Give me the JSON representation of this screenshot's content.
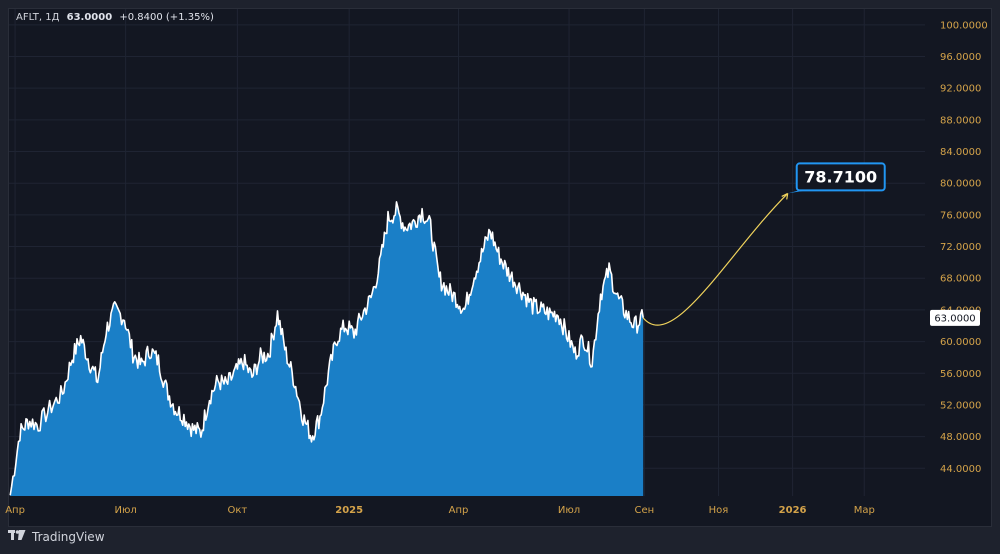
{
  "legend": {
    "symbol": "AFLT, 1Д",
    "value": "63.0000",
    "change": "+0.8400 (+1.35%)"
  },
  "footer": {
    "brand": "TradingView",
    "logo_icon": "tradingview-logo-icon"
  },
  "colors": {
    "background": "#131722",
    "area_fill": "#1a7fc7",
    "line": "#ffffff",
    "axis_text": "#d4a34a",
    "grid": "#1f2433",
    "projection": "#f0d35c",
    "target_border": "#2196f3"
  },
  "chart_data": {
    "type": "area",
    "y_axis": {
      "ticks": [
        "100.0000",
        "96.0000",
        "92.0000",
        "88.0000",
        "84.0000",
        "80.0000",
        "76.0000",
        "72.0000",
        "68.0000",
        "64.0000",
        "60.0000",
        "56.0000",
        "52.0000",
        "48.0000",
        "44.0000"
      ],
      "ylim": [
        40.5,
        102
      ],
      "last_price_label": "63.0000",
      "last_price": 63.0
    },
    "x_axis": {
      "ticks": [
        {
          "label": "Апр",
          "bold": false
        },
        {
          "label": "Июл",
          "bold": false
        },
        {
          "label": "Окт",
          "bold": false
        },
        {
          "label": "2025",
          "bold": true
        },
        {
          "label": "Апр",
          "bold": false
        },
        {
          "label": "Июл",
          "bold": false
        },
        {
          "label": "Сен",
          "bold": false
        },
        {
          "label": "Ноя",
          "bold": false
        },
        {
          "label": "2026",
          "bold": true
        },
        {
          "label": "Мар",
          "bold": false
        }
      ]
    },
    "series": [
      {
        "x": [
          "2024-03-28",
          "2024-04-05",
          "2024-04-12",
          "2024-04-20",
          "2024-05-01",
          "2024-05-10",
          "2024-05-18",
          "2024-05-25",
          "2024-06-01",
          "2024-06-08",
          "2024-06-15",
          "2024-06-22",
          "2024-06-30",
          "2024-07-07",
          "2024-07-14",
          "2024-07-21",
          "2024-07-28",
          "2024-08-04",
          "2024-08-11",
          "2024-08-18",
          "2024-08-25",
          "2024-09-01",
          "2024-09-08",
          "2024-09-15",
          "2024-09-22",
          "2024-09-29",
          "2024-10-06",
          "2024-10-13",
          "2024-10-20",
          "2024-10-27",
          "2024-11-03",
          "2024-11-10",
          "2024-11-17",
          "2024-11-24",
          "2024-12-01",
          "2024-12-08",
          "2024-12-15",
          "2024-12-22",
          "2024-12-29",
          "2025-01-05",
          "2025-01-12",
          "2025-01-19",
          "2025-01-26",
          "2025-02-02",
          "2025-02-09",
          "2025-02-16",
          "2025-02-23",
          "2025-03-02",
          "2025-03-09",
          "2025-03-16",
          "2025-03-23",
          "2025-03-30",
          "2025-04-06",
          "2025-04-13",
          "2025-04-20",
          "2025-04-27",
          "2025-05-04",
          "2025-05-11",
          "2025-05-18",
          "2025-05-25",
          "2025-06-01",
          "2025-06-08",
          "2025-06-15",
          "2025-06-22",
          "2025-06-29",
          "2025-07-06",
          "2025-07-13",
          "2025-07-20",
          "2025-07-27",
          "2025-08-03",
          "2025-08-10",
          "2025-08-17",
          "2025-08-24",
          "2025-08-31"
        ],
        "values": [
          40.6,
          48.5,
          50.0,
          49.5,
          51.8,
          53.5,
          58.0,
          60.5,
          57.5,
          55.0,
          61.5,
          64.0,
          63.0,
          58.5,
          57.0,
          59.0,
          57.5,
          53.8,
          51.5,
          50.5,
          49.0,
          48.5,
          53.0,
          55.0,
          54.5,
          56.0,
          57.5,
          55.5,
          58.0,
          58.5,
          63.5,
          58.5,
          55.0,
          50.5,
          48.0,
          50.5,
          56.0,
          60.5,
          62.0,
          61.0,
          63.5,
          65.5,
          69.5,
          75.5,
          76.5,
          74.5,
          75.0,
          76.5,
          74.5,
          68.0,
          66.5,
          65.5,
          64.0,
          68.0,
          71.0,
          74.0,
          71.0,
          69.0,
          67.5,
          66.0,
          64.5,
          64.0,
          63.5,
          63.5,
          61.0,
          58.5,
          60.5,
          57.5,
          66.0,
          69.0,
          65.5,
          63.5,
          62.0,
          63.0
        ]
      }
    ],
    "projection": {
      "start_value": 63.0,
      "target_value": 78.71,
      "target_label": "78.7100",
      "end_date": "2025-12-28"
    }
  }
}
